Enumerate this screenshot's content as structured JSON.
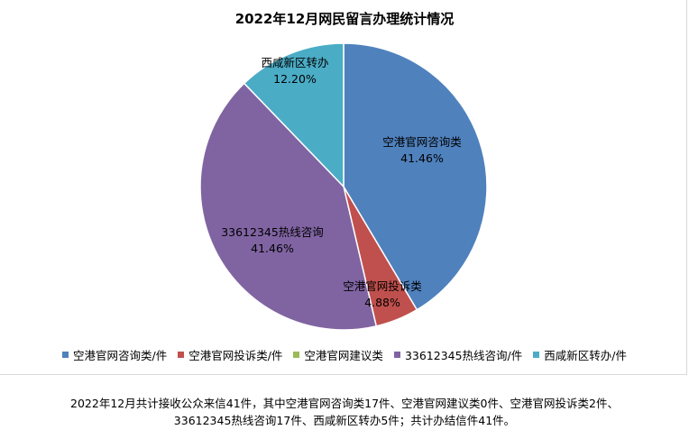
{
  "chart_data": {
    "type": "pie",
    "title": "2022年12月网民留言办理统计情况",
    "slices": [
      {
        "name": "空港官网咨询类",
        "label_line1": "空港官网咨询类",
        "label_line2": "41.46%",
        "legend": "空港官网咨询类/件",
        "value": 17,
        "percent": 41.46,
        "color": "#4f81bd"
      },
      {
        "name": "空港官网投诉类",
        "label_line1": "空港官网投诉类",
        "label_line2": "4.88%",
        "legend": "空港官网投诉类/件",
        "value": 2,
        "percent": 4.88,
        "color": "#c0504d"
      },
      {
        "name": "空港官网建议类",
        "label_line1": "",
        "label_line2": "",
        "legend": "空港官网建议类",
        "value": 0,
        "percent": 0,
        "color": "#9bbb59"
      },
      {
        "name": "33612345热线咨询",
        "label_line1": "33612345热线咨询",
        "label_line2": "41.46%",
        "legend": "33612345热线咨询/件",
        "value": 17,
        "percent": 41.46,
        "color": "#8064a2"
      },
      {
        "name": "西咸新区转办",
        "label_line1": "西咸新区转办",
        "label_line2": "12.20%",
        "legend": "西咸新区转办/件",
        "value": 5,
        "percent": 12.2,
        "color": "#4bacc6"
      }
    ],
    "legend_position": "bottom"
  },
  "footnote": {
    "line1": "2022年12月共计接收公众来信41件，其中空港官网咨询类17件、空港官网建议类0件、空港官网投诉类2件、",
    "line2": "33612345热线咨询17件、西咸新区转办5件；共计办结信件41件。"
  }
}
